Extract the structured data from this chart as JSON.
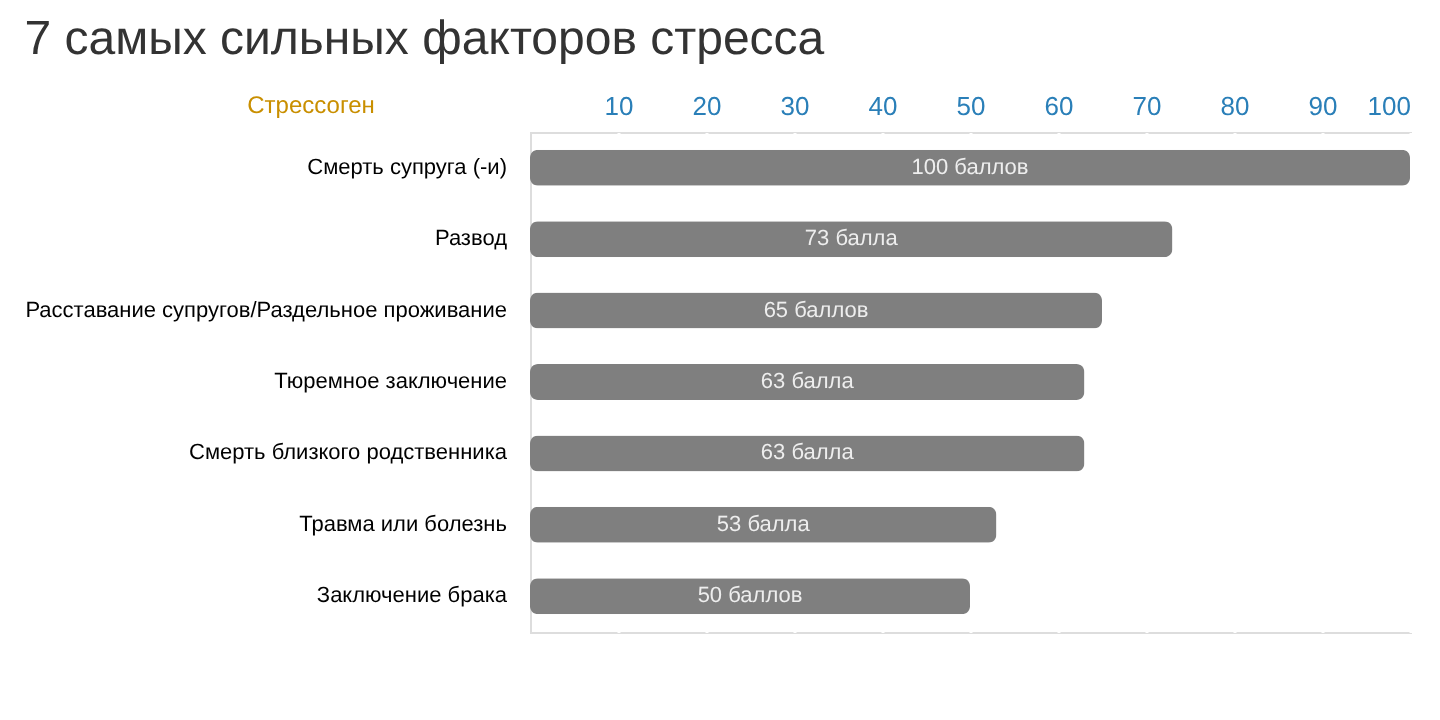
{
  "chart_data": {
    "type": "bar",
    "orientation": "horizontal",
    "title": "7 самых сильных факторов стресса",
    "ylabel": "Стрессоген",
    "categories": [
      "Смерть супруга (-и)",
      "Развод",
      "Расставание супругов/Раздельное проживание",
      "Тюремное заключение",
      "Смерть близкого родственника",
      "Травма или болезнь",
      "Заключение брака"
    ],
    "values": [
      100,
      73,
      65,
      63,
      63,
      53,
      50
    ],
    "value_labels": [
      "100 баллов",
      "73 балла",
      "65 баллов",
      "63 балла",
      "63 балла",
      "53 балла",
      "50 баллов"
    ],
    "color": "#7f7f7f",
    "xlim": [
      0,
      100
    ],
    "xticks": [
      10,
      20,
      30,
      40,
      50,
      60,
      70,
      80,
      90,
      100
    ],
    "grid": "x"
  }
}
